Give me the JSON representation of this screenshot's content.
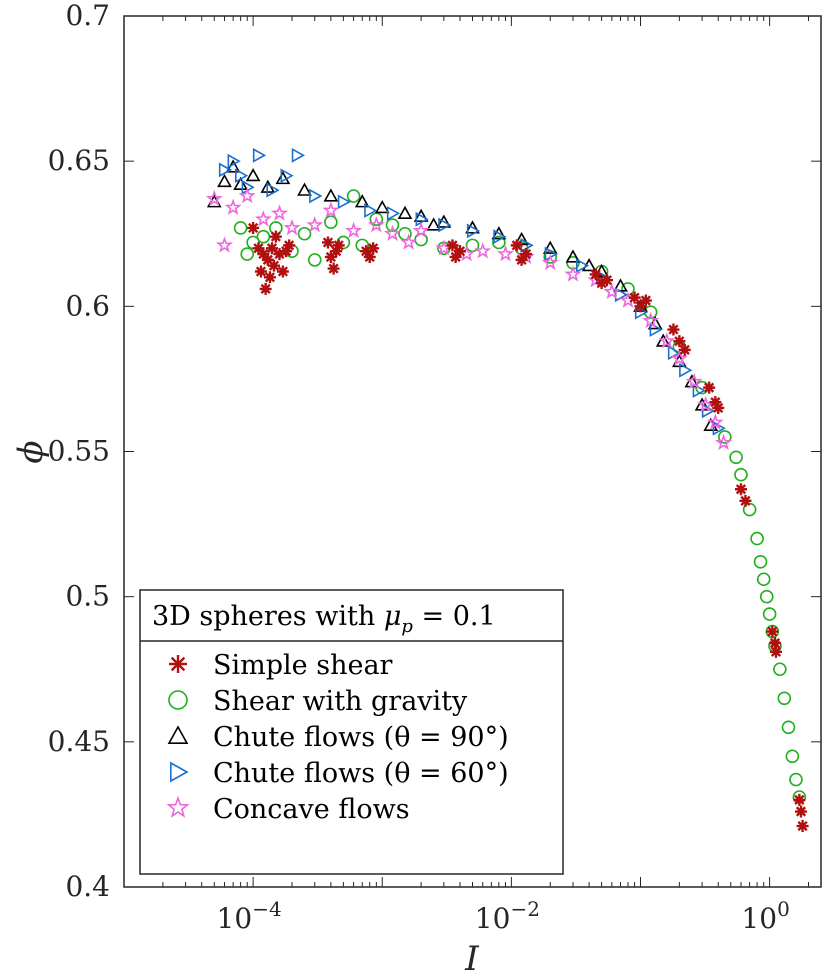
{
  "chart_data": {
    "type": "scatter",
    "title": "",
    "xlabel": "I",
    "ylabel": "ϕ",
    "xscale": "log",
    "xlim": [
      1e-05,
      2.5
    ],
    "ylim": [
      0.4,
      0.7
    ],
    "x_tick_labels": [
      {
        "base": "10",
        "exp": "-4"
      },
      {
        "base": "10",
        "exp": "-2"
      },
      {
        "base": "10",
        "exp": "0"
      }
    ],
    "y_tick_labels": [
      "0.4",
      "0.45",
      "0.5",
      "0.55",
      "0.6",
      "0.65",
      "0.7"
    ],
    "legend_title": "3D spheres with μp = 0.1",
    "legend_title_parts": {
      "text": "3D spheres with ",
      "symbol": "μ",
      "subscript": "p",
      "tail": " = 0.1"
    },
    "legend_position": "bottom-left",
    "series": [
      {
        "name": "Simple shear",
        "marker": "asterisk",
        "color": "#b01010",
        "points": [
          [
            0.0001,
            0.627
          ],
          [
            0.00011,
            0.62
          ],
          [
            0.000115,
            0.612
          ],
          [
            0.00012,
            0.618
          ],
          [
            0.000125,
            0.606
          ],
          [
            0.00013,
            0.616
          ],
          [
            0.000135,
            0.61
          ],
          [
            0.00014,
            0.62
          ],
          [
            0.000145,
            0.614
          ],
          [
            0.00015,
            0.624
          ],
          [
            0.00016,
            0.618
          ],
          [
            0.00017,
            0.612
          ],
          [
            0.00018,
            0.619
          ],
          [
            0.00019,
            0.621
          ],
          [
            0.00038,
            0.622
          ],
          [
            0.0004,
            0.617
          ],
          [
            0.00042,
            0.613
          ],
          [
            0.00044,
            0.619
          ],
          [
            0.00046,
            0.621
          ],
          [
            0.00075,
            0.619
          ],
          [
            0.0008,
            0.617
          ],
          [
            0.00085,
            0.62
          ],
          [
            0.0035,
            0.621
          ],
          [
            0.0037,
            0.617
          ],
          [
            0.004,
            0.619
          ],
          [
            0.011,
            0.621
          ],
          [
            0.012,
            0.616
          ],
          [
            0.013,
            0.618
          ],
          [
            0.045,
            0.611
          ],
          [
            0.05,
            0.608
          ],
          [
            0.055,
            0.609
          ],
          [
            0.09,
            0.603
          ],
          [
            0.1,
            0.6
          ],
          [
            0.11,
            0.602
          ],
          [
            0.18,
            0.592
          ],
          [
            0.2,
            0.588
          ],
          [
            0.22,
            0.585
          ],
          [
            0.34,
            0.572
          ],
          [
            0.38,
            0.567
          ],
          [
            0.4,
            0.565
          ],
          [
            0.6,
            0.537
          ],
          [
            0.65,
            0.533
          ],
          [
            1.05,
            0.488
          ],
          [
            1.1,
            0.484
          ],
          [
            1.12,
            0.481
          ],
          [
            1.7,
            0.43
          ],
          [
            1.75,
            0.426
          ],
          [
            1.8,
            0.421
          ]
        ]
      },
      {
        "name": "Shear with gravity",
        "marker": "circle",
        "color": "#20b020",
        "points": [
          [
            8e-05,
            0.627
          ],
          [
            9e-05,
            0.618
          ],
          [
            0.0001,
            0.622
          ],
          [
            0.00012,
            0.624
          ],
          [
            0.00015,
            0.627
          ],
          [
            0.0002,
            0.619
          ],
          [
            0.00025,
            0.625
          ],
          [
            0.0003,
            0.616
          ],
          [
            0.0004,
            0.629
          ],
          [
            0.0005,
            0.622
          ],
          [
            0.0006,
            0.638
          ],
          [
            0.0007,
            0.621
          ],
          [
            0.0009,
            0.63
          ],
          [
            0.0012,
            0.628
          ],
          [
            0.0015,
            0.625
          ],
          [
            0.002,
            0.623
          ],
          [
            0.003,
            0.62
          ],
          [
            0.005,
            0.621
          ],
          [
            0.008,
            0.622
          ],
          [
            0.012,
            0.62
          ],
          [
            0.02,
            0.617
          ],
          [
            0.03,
            0.615
          ],
          [
            0.05,
            0.612
          ],
          [
            0.08,
            0.606
          ],
          [
            0.12,
            0.598
          ],
          [
            0.2,
            0.586
          ],
          [
            0.3,
            0.572
          ],
          [
            0.45,
            0.555
          ],
          [
            0.55,
            0.548
          ],
          [
            0.6,
            0.542
          ],
          [
            0.7,
            0.53
          ],
          [
            0.8,
            0.52
          ],
          [
            0.85,
            0.512
          ],
          [
            0.9,
            0.506
          ],
          [
            0.95,
            0.5
          ],
          [
            1.0,
            0.494
          ],
          [
            1.05,
            0.488
          ],
          [
            1.1,
            0.483
          ],
          [
            1.2,
            0.475
          ],
          [
            1.3,
            0.465
          ],
          [
            1.4,
            0.455
          ],
          [
            1.5,
            0.445
          ],
          [
            1.6,
            0.437
          ],
          [
            1.7,
            0.431
          ]
        ]
      },
      {
        "name": "Chute flows (θ = 90°)",
        "marker": "triangle-up",
        "color": "#000000",
        "points": [
          [
            6e-05,
            0.643
          ],
          [
            7e-05,
            0.648
          ],
          [
            8e-05,
            0.642
          ],
          [
            0.0001,
            0.645
          ],
          [
            0.00013,
            0.641
          ],
          [
            0.00017,
            0.644
          ],
          [
            0.00025,
            0.64
          ],
          [
            0.0004,
            0.638
          ],
          [
            0.0007,
            0.636
          ],
          [
            0.001,
            0.634
          ],
          [
            0.0015,
            0.632
          ],
          [
            0.002,
            0.631
          ],
          [
            0.003,
            0.629
          ],
          [
            0.005,
            0.627
          ],
          [
            0.008,
            0.625
          ],
          [
            0.012,
            0.623
          ],
          [
            0.02,
            0.62
          ],
          [
            0.03,
            0.617
          ],
          [
            0.05,
            0.612
          ],
          [
            0.07,
            0.607
          ],
          [
            0.1,
            0.6
          ],
          [
            0.13,
            0.594
          ],
          [
            0.15,
            0.588
          ],
          [
            0.2,
            0.581
          ],
          [
            0.25,
            0.574
          ],
          [
            0.3,
            0.566
          ],
          [
            0.35,
            0.559
          ],
          [
            5e-05,
            0.636
          ],
          [
            0.0025,
            0.628
          ],
          [
            0.04,
            0.614
          ]
        ]
      },
      {
        "name": "Chute flows (θ = 60°)",
        "marker": "triangle-right",
        "color": "#1a6fcf",
        "points": [
          [
            6e-05,
            0.647
          ],
          [
            7e-05,
            0.65
          ],
          [
            8e-05,
            0.645
          ],
          [
            9e-05,
            0.641
          ],
          [
            0.00011,
            0.652
          ],
          [
            0.00014,
            0.64
          ],
          [
            0.00018,
            0.645
          ],
          [
            0.00022,
            0.652
          ],
          [
            0.0003,
            0.638
          ],
          [
            0.0005,
            0.636
          ],
          [
            0.0008,
            0.633
          ],
          [
            0.0012,
            0.632
          ],
          [
            0.002,
            0.63
          ],
          [
            0.003,
            0.628
          ],
          [
            0.005,
            0.626
          ],
          [
            0.008,
            0.624
          ],
          [
            0.013,
            0.621
          ],
          [
            0.02,
            0.618
          ],
          [
            0.035,
            0.614
          ],
          [
            0.05,
            0.61
          ],
          [
            0.07,
            0.604
          ],
          [
            0.1,
            0.598
          ],
          [
            0.13,
            0.592
          ],
          [
            0.18,
            0.584
          ],
          [
            0.22,
            0.578
          ],
          [
            0.28,
            0.571
          ],
          [
            0.33,
            0.564
          ],
          [
            0.4,
            0.558
          ]
        ]
      },
      {
        "name": "Concave flows",
        "marker": "star",
        "color": "#ee66dd",
        "points": [
          [
            5e-05,
            0.637
          ],
          [
            6e-05,
            0.621
          ],
          [
            7e-05,
            0.634
          ],
          [
            9e-05,
            0.638
          ],
          [
            0.00012,
            0.63
          ],
          [
            0.00016,
            0.632
          ],
          [
            0.0002,
            0.627
          ],
          [
            0.0003,
            0.628
          ],
          [
            0.0004,
            0.633
          ],
          [
            0.0006,
            0.626
          ],
          [
            0.0009,
            0.628
          ],
          [
            0.0012,
            0.625
          ],
          [
            0.0016,
            0.622
          ],
          [
            0.002,
            0.626
          ],
          [
            0.003,
            0.62
          ],
          [
            0.0045,
            0.618
          ],
          [
            0.006,
            0.619
          ],
          [
            0.009,
            0.618
          ],
          [
            0.013,
            0.617
          ],
          [
            0.02,
            0.615
          ],
          [
            0.03,
            0.611
          ],
          [
            0.045,
            0.609
          ],
          [
            0.06,
            0.605
          ],
          [
            0.08,
            0.602
          ],
          [
            0.12,
            0.595
          ],
          [
            0.16,
            0.588
          ],
          [
            0.2,
            0.582
          ],
          [
            0.26,
            0.574
          ],
          [
            0.32,
            0.566
          ],
          [
            0.38,
            0.56
          ],
          [
            0.44,
            0.553
          ]
        ]
      }
    ]
  }
}
